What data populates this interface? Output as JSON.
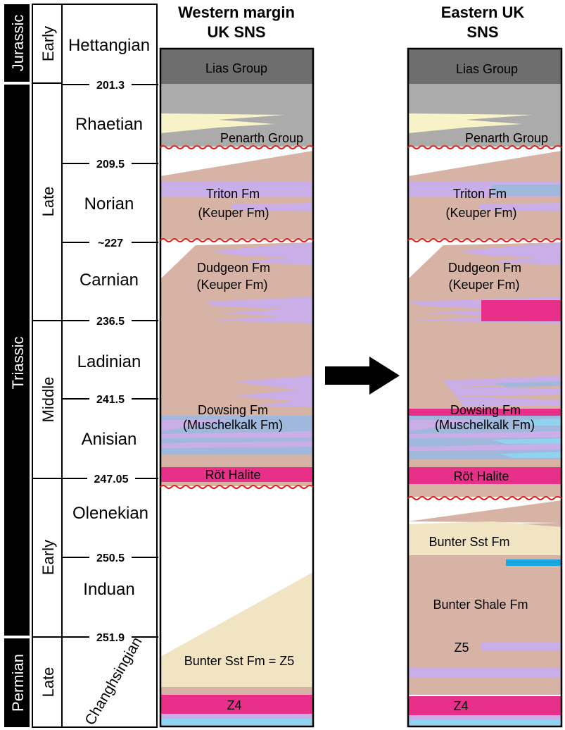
{
  "colors": {
    "lias": "#6e6e6e",
    "penarth": "#ababab",
    "mudstone": "#d6b3a4",
    "anhydrite": "#c9aee8",
    "carbonate": "#9fb8dc",
    "halite": "#e8308a",
    "sandstone": "#f1e4c3",
    "rhaetian_sand": "#f7f3c6",
    "blue_bed": "#1aa6df",
    "light_blue": "#8fd3ee",
    "unconformity": "#e02020",
    "black": "#000000"
  },
  "periods": {
    "jurassic": "Jurassic",
    "triassic": "Triassic",
    "permian": "Permian"
  },
  "epochs": {
    "early_jurassic": "Early",
    "late_triassic": "Late",
    "middle_triassic": "Middle",
    "early_triassic": "Early",
    "late_permian": "Late"
  },
  "stages": {
    "hettangian": "Hettangian",
    "rhaetian": "Rhaetian",
    "norian": "Norian",
    "carnian": "Carnian",
    "ladinian": "Ladinian",
    "anisian": "Anisian",
    "olenekian": "Olenekian",
    "induan": "Induan",
    "changhsingian": "Changhsingian"
  },
  "ages": [
    "201.3",
    "209.5",
    "~227",
    "236.5",
    "241.5",
    "247.05",
    "250.5",
    "251.9"
  ],
  "columns": {
    "west_title": [
      "Western margin",
      "UK SNS"
    ],
    "east_title": [
      "Eastern UK",
      "SNS"
    ]
  },
  "west": {
    "lias": "Lias Group",
    "penarth": "Penarth Group",
    "triton": [
      "Triton Fm",
      "(Keuper Fm)"
    ],
    "dudgeon": [
      "Dudgeon Fm",
      "(Keuper Fm)"
    ],
    "dowsing": [
      "Dowsing Fm",
      "(Muschelkalk Fm)"
    ],
    "rot": "Röt Halite",
    "bunter": "Bunter Sst Fm = Z5",
    "z4": "Z4"
  },
  "east": {
    "lias": "Lias Group",
    "penarth": "Penarth Group",
    "triton": [
      "Triton Fm",
      "(Keuper Fm)"
    ],
    "dudgeon": [
      "Dudgeon Fm",
      "(Keuper Fm)"
    ],
    "dowsing": [
      "Dowsing Fm",
      "(Muschelkalk Fm)"
    ],
    "rot": "Röt Halite",
    "bunter_sst": "Bunter Sst Fm",
    "bunter_shale": "Bunter Shale Fm",
    "z5": "Z5",
    "z4": "Z4"
  }
}
